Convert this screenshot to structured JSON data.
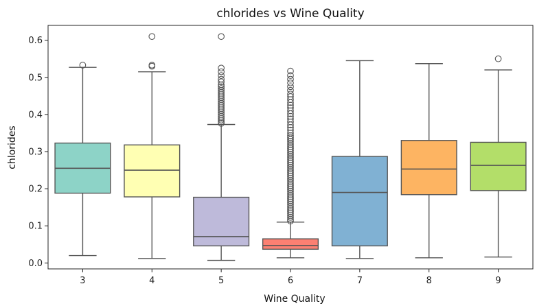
{
  "chart_data": {
    "type": "box",
    "title": "chlorides vs Wine Quality",
    "xlabel": "Wine Quality",
    "ylabel": "chlorides",
    "ylim": [
      -0.016,
      0.64
    ],
    "yticks": [
      0.0,
      0.1,
      0.2,
      0.3,
      0.4,
      0.5,
      0.6
    ],
    "ytick_labels": [
      "0.0",
      "0.1",
      "0.2",
      "0.3",
      "0.4",
      "0.5",
      "0.6"
    ],
    "grid": false,
    "categories": [
      "3",
      "4",
      "5",
      "6",
      "7",
      "8",
      "9"
    ],
    "boxes": [
      {
        "category": "3",
        "whisker_low": 0.02,
        "q1": 0.188,
        "median": 0.255,
        "q3": 0.323,
        "whisker_high": 0.527,
        "color": "#8dd3c7",
        "outliers": [
          0.533
        ]
      },
      {
        "category": "4",
        "whisker_low": 0.012,
        "q1": 0.178,
        "median": 0.25,
        "q3": 0.318,
        "whisker_high": 0.515,
        "color": "#ffffb3",
        "outliers": [
          0.53,
          0.533,
          0.61
        ]
      },
      {
        "category": "5",
        "whisker_low": 0.007,
        "q1": 0.046,
        "median": 0.071,
        "q3": 0.177,
        "whisker_high": 0.373,
        "color": "#bebada",
        "outliers": [
          0.376,
          0.38,
          0.385,
          0.39,
          0.395,
          0.4,
          0.405,
          0.41,
          0.415,
          0.42,
          0.425,
          0.43,
          0.435,
          0.44,
          0.445,
          0.45,
          0.455,
          0.46,
          0.465,
          0.47,
          0.475,
          0.48,
          0.488,
          0.495,
          0.505,
          0.515,
          0.525,
          0.61
        ]
      },
      {
        "category": "6",
        "whisker_low": 0.014,
        "q1": 0.037,
        "median": 0.047,
        "q3": 0.065,
        "whisker_high": 0.11,
        "color": "#fb8072",
        "outliers": [
          0.113,
          0.118,
          0.123,
          0.128,
          0.133,
          0.138,
          0.143,
          0.148,
          0.153,
          0.158,
          0.163,
          0.168,
          0.173,
          0.178,
          0.183,
          0.188,
          0.193,
          0.198,
          0.203,
          0.208,
          0.213,
          0.218,
          0.223,
          0.228,
          0.233,
          0.238,
          0.243,
          0.248,
          0.253,
          0.258,
          0.263,
          0.268,
          0.273,
          0.278,
          0.283,
          0.288,
          0.293,
          0.298,
          0.303,
          0.308,
          0.313,
          0.318,
          0.323,
          0.328,
          0.333,
          0.338,
          0.343,
          0.35,
          0.358,
          0.365,
          0.372,
          0.38,
          0.388,
          0.395,
          0.402,
          0.41,
          0.418,
          0.425,
          0.432,
          0.44,
          0.448,
          0.455,
          0.465,
          0.475,
          0.485,
          0.495,
          0.505,
          0.517
        ]
      },
      {
        "category": "7",
        "whisker_low": 0.012,
        "q1": 0.046,
        "median": 0.19,
        "q3": 0.287,
        "whisker_high": 0.545,
        "color": "#80b1d3",
        "outliers": []
      },
      {
        "category": "8",
        "whisker_low": 0.014,
        "q1": 0.184,
        "median": 0.253,
        "q3": 0.33,
        "whisker_high": 0.537,
        "color": "#fdb462",
        "outliers": []
      },
      {
        "category": "9",
        "whisker_low": 0.016,
        "q1": 0.195,
        "median": 0.263,
        "q3": 0.325,
        "whisker_high": 0.52,
        "color": "#b3de69",
        "outliers": [
          0.55
        ]
      }
    ]
  }
}
